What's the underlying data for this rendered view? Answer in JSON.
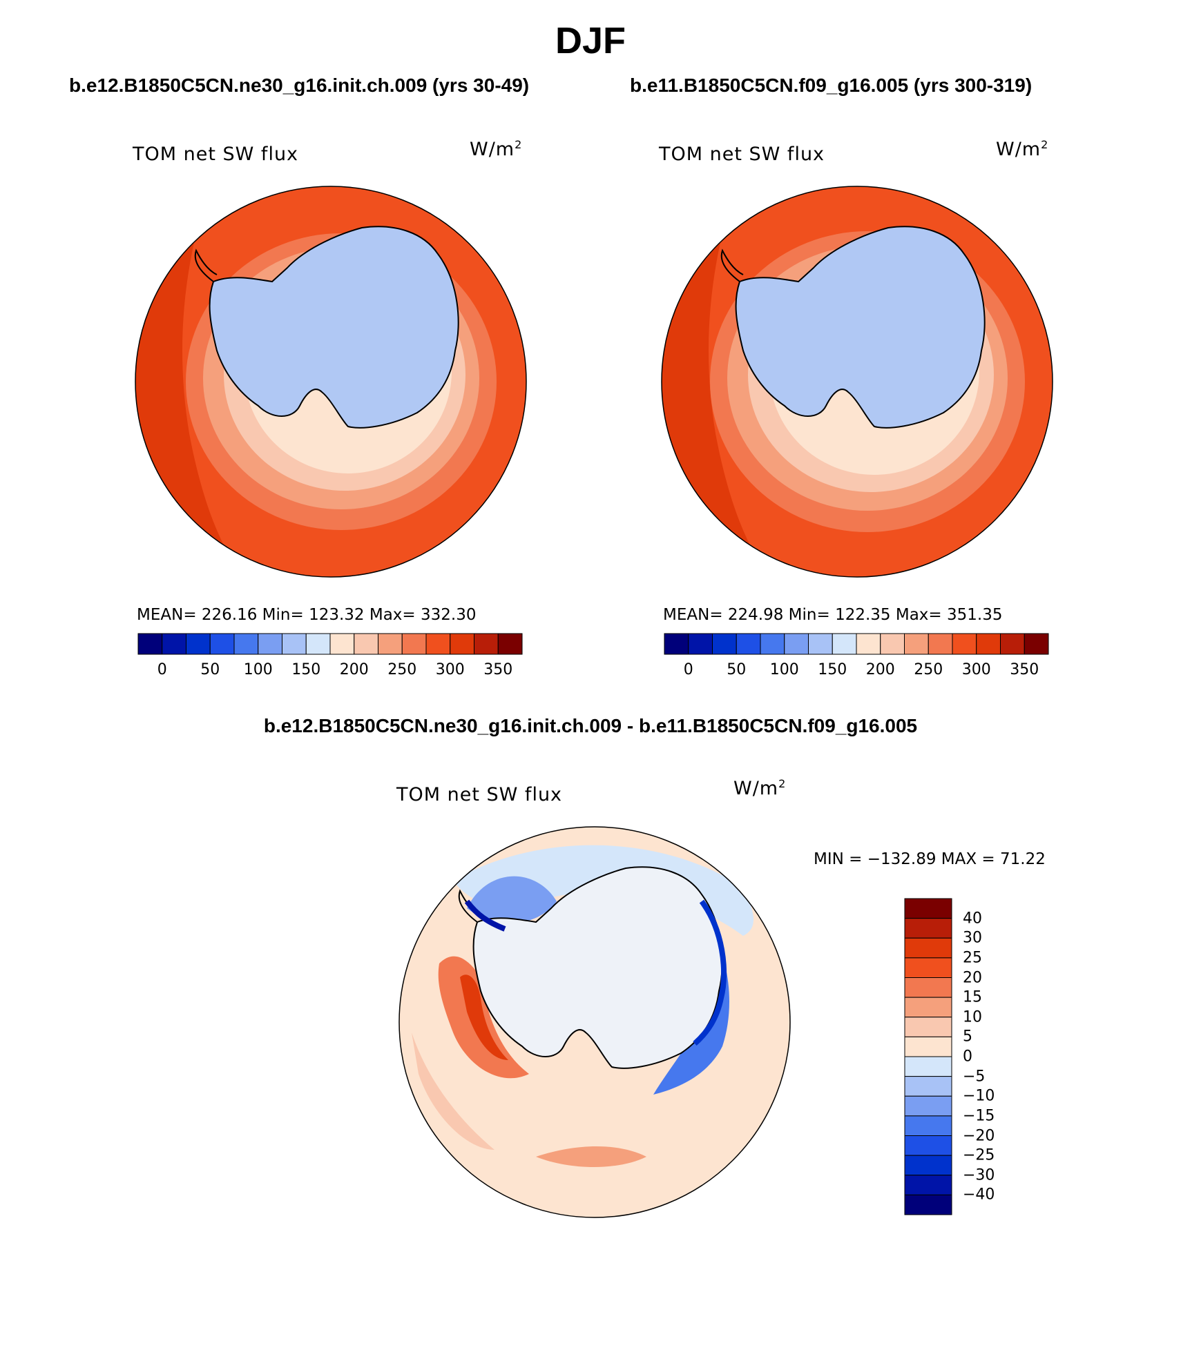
{
  "title": "DJF",
  "diff_title": "b.e12.B1850C5CN.ne30_g16.init.ch.009 - b.e11.B1850C5CN.f09_g16.005",
  "panels": [
    {
      "case": "b.e12.B1850C5CN.ne30_g16.init.ch.009 (yrs 30-49)",
      "variable": "TOM net SW flux",
      "units": "W/m",
      "units_exp": "2",
      "stats": "MEAN= 226.16   Min= 123.32   Max= 332.30"
    },
    {
      "case": "b.e11.B1850C5CN.f09_g16.005 (yrs 300-319)",
      "variable": "TOM net SW flux",
      "units": "W/m",
      "units_exp": "2",
      "stats": "MEAN= 224.98   Min= 122.35   Max= 351.35"
    }
  ],
  "diff_panel": {
    "variable": "TOM net SW flux",
    "units": "W/m",
    "units_exp": "2",
    "stats": "MIN = −132.89 MAX =   71.22"
  },
  "colorbar_abs": {
    "colors": [
      "#00007a",
      "#0014a8",
      "#0032cc",
      "#1e50e6",
      "#4678ee",
      "#7a9ef2",
      "#a8c2f6",
      "#d4e6fa",
      "#fde4d0",
      "#f9c8b0",
      "#f5a07c",
      "#f27850",
      "#f0501e",
      "#e03a0a",
      "#b81e08",
      "#7a0000"
    ],
    "tick_labels": [
      "0",
      "50",
      "100",
      "150",
      "200",
      "250",
      "300",
      "350"
    ]
  },
  "colorbar_diff": {
    "colors": [
      "#7a0000",
      "#b81e08",
      "#e03a0a",
      "#f0501e",
      "#f27850",
      "#f5a07c",
      "#f9c8b0",
      "#fde4d0",
      "#d4e6fa",
      "#a8c2f6",
      "#7a9ef2",
      "#4678ee",
      "#1e50e6",
      "#0032cc",
      "#0014a8",
      "#00007a"
    ],
    "tick_labels": [
      "40",
      "30",
      "25",
      "20",
      "15",
      "10",
      "5",
      "0",
      "−5",
      "−10",
      "−15",
      "−20",
      "−25",
      "−30",
      "−40"
    ]
  }
}
